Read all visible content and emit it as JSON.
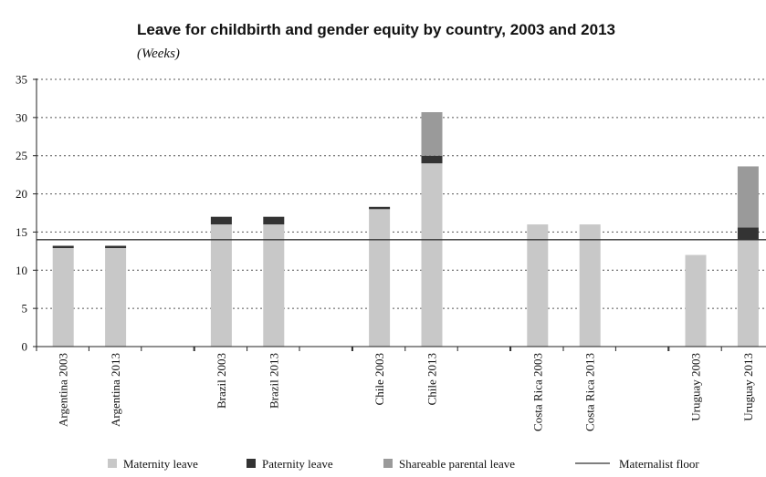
{
  "chart_data": {
    "type": "bar",
    "stacked": true,
    "title": "Leave for childbirth and gender equity by country, 2003 and 2013",
    "subtitle": "(Weeks)",
    "categories": [
      "Argentina 2003",
      "Argentina 2013",
      "Brazil 2003",
      "Brazil 2013",
      "Chile 2003",
      "Chile 2013",
      "Costa Rica 2003",
      "Costa Rica 2013",
      "Uruguay 2003",
      "Uruguay 2013"
    ],
    "groups": [
      [
        0,
        1
      ],
      [
        2,
        3
      ],
      [
        4,
        5
      ],
      [
        6,
        7
      ],
      [
        8,
        9
      ]
    ],
    "series": [
      {
        "name": "Maternity leave",
        "color": "#c8c8c8",
        "values": [
          12.9,
          12.9,
          16,
          16,
          18,
          24,
          16,
          16,
          12,
          14
        ]
      },
      {
        "name": "Paternity leave",
        "color": "#333333",
        "values": [
          0.3,
          0.3,
          1,
          1,
          0.3,
          1,
          0,
          0,
          0,
          1.6
        ]
      },
      {
        "name": "Shareable parental leave",
        "color": "#9a9a9a",
        "values": [
          0,
          0,
          0,
          0,
          0,
          5.7,
          0,
          0,
          0,
          8
        ]
      }
    ],
    "reference_line": {
      "name": "Maternalist floor",
      "value": 14,
      "color": "#333333"
    },
    "ylim": [
      0,
      35
    ],
    "yticks": [
      0,
      5,
      10,
      15,
      20,
      25,
      30,
      35
    ],
    "xlabel": "",
    "ylabel": "",
    "grid": "horizontal dotted",
    "legend_position": "bottom"
  }
}
